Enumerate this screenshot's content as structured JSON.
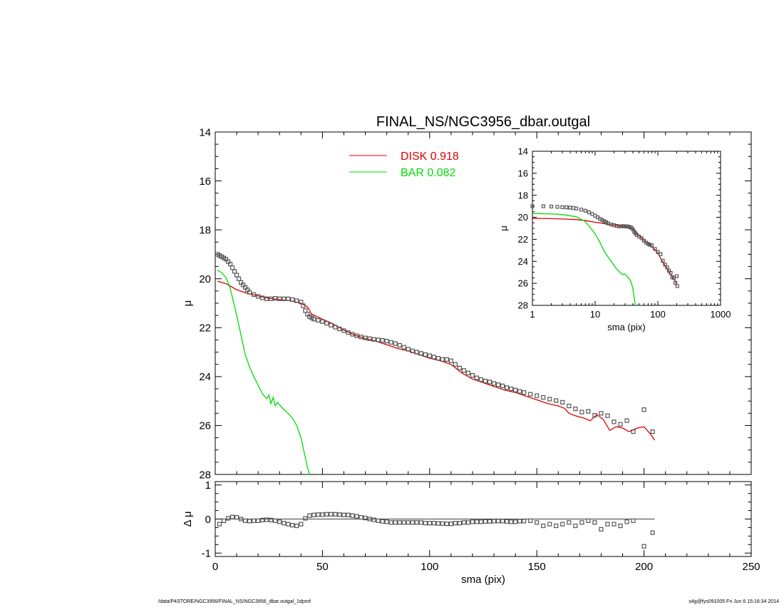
{
  "chart_data": [
    {
      "id": "main",
      "type": "line",
      "title": "FINAL_NS/NGC3956_dbar.outgal",
      "xlabel": "",
      "ylabel": "μ",
      "xlim": [
        0,
        250
      ],
      "ylim": [
        28,
        14
      ],
      "y_inverted": true,
      "xticks": [],
      "yticks": [
        14,
        16,
        18,
        20,
        22,
        24,
        26,
        28
      ],
      "legend": [
        {
          "label": "DISK",
          "value": "0.918",
          "color": "#dd0000"
        },
        {
          "label": "BAR",
          "value": "0.082",
          "color": "#00dd00"
        }
      ],
      "legend_position": "top-center",
      "series": [
        {
          "name": "DISK",
          "kind": "line",
          "color": "#dd0000",
          "x": [
            1,
            3,
            5,
            7,
            10,
            15,
            20,
            25,
            30,
            35,
            40,
            43,
            45,
            50,
            55,
            60,
            65,
            70,
            75,
            80,
            85,
            90,
            95,
            100,
            105,
            110,
            115,
            120,
            125,
            130,
            135,
            140,
            145,
            150,
            155,
            160,
            163,
            165,
            168,
            172,
            175,
            178,
            181,
            184,
            187,
            190,
            193,
            197,
            200,
            203,
            205
          ],
          "y": [
            20.1,
            20.15,
            20.2,
            20.3,
            20.45,
            20.6,
            20.7,
            20.8,
            20.85,
            20.9,
            21.0,
            21.15,
            21.45,
            21.65,
            21.85,
            22.1,
            22.3,
            22.45,
            22.55,
            22.7,
            22.85,
            22.95,
            23.1,
            23.25,
            23.35,
            23.5,
            23.85,
            24.1,
            24.25,
            24.4,
            24.55,
            24.65,
            24.8,
            24.95,
            25.1,
            25.2,
            25.3,
            25.5,
            25.6,
            25.7,
            25.8,
            25.55,
            25.75,
            26.2,
            26.05,
            26.1,
            26.25,
            26.1,
            26.05,
            26.35,
            26.6
          ]
        },
        {
          "name": "BAR",
          "kind": "line",
          "color": "#00dd00",
          "x": [
            1,
            3,
            5,
            7,
            10,
            12,
            14,
            16,
            18,
            20,
            22,
            24,
            25,
            26,
            27,
            28,
            29,
            30,
            32,
            34,
            36,
            38,
            40,
            41,
            42,
            43,
            44
          ],
          "y": [
            19.65,
            19.75,
            19.95,
            20.4,
            21.5,
            22.3,
            23.1,
            23.6,
            24.0,
            24.35,
            24.7,
            24.9,
            24.75,
            25.1,
            24.85,
            25.2,
            25.05,
            25.15,
            25.35,
            25.5,
            25.7,
            26.0,
            26.5,
            26.9,
            27.3,
            27.7,
            28.1
          ]
        },
        {
          "name": "",
          "kind": "points",
          "color": "#555555",
          "x": [
            1,
            2,
            3,
            4,
            5,
            6,
            7,
            8,
            9,
            10,
            11,
            12,
            13,
            14,
            15,
            16,
            18,
            20,
            22,
            24,
            26,
            28,
            30,
            32,
            34,
            36,
            38,
            40,
            41,
            42,
            43,
            44,
            45,
            46,
            48,
            50,
            52,
            54,
            56,
            58,
            60,
            62,
            64,
            66,
            68,
            70,
            72,
            74,
            76,
            78,
            80,
            82,
            84,
            86,
            88,
            90,
            92,
            94,
            96,
            98,
            100,
            102,
            104,
            106,
            108,
            110,
            112,
            114,
            116,
            118,
            120,
            122,
            124,
            126,
            128,
            130,
            132,
            134,
            136,
            138,
            140,
            142,
            144,
            147,
            150,
            153,
            156,
            159,
            162,
            165,
            168,
            171,
            174,
            177,
            180,
            183,
            186,
            189,
            192,
            195,
            200,
            204
          ],
          "y": [
            19.0,
            19.05,
            19.1,
            19.15,
            19.2,
            19.3,
            19.4,
            19.55,
            19.7,
            19.85,
            20.0,
            20.15,
            20.25,
            20.35,
            20.45,
            20.55,
            20.65,
            20.72,
            20.78,
            20.82,
            20.82,
            20.8,
            20.82,
            20.82,
            20.82,
            20.85,
            20.9,
            20.95,
            21.1,
            21.3,
            21.45,
            21.55,
            21.6,
            21.65,
            21.7,
            21.75,
            21.82,
            21.9,
            21.98,
            22.05,
            22.12,
            22.2,
            22.27,
            22.33,
            22.38,
            22.42,
            22.45,
            22.48,
            22.5,
            22.52,
            22.55,
            22.6,
            22.65,
            22.72,
            22.8,
            22.88,
            22.95,
            23.0,
            23.05,
            23.1,
            23.15,
            23.2,
            23.25,
            23.3,
            23.3,
            23.35,
            23.5,
            23.65,
            23.75,
            23.85,
            23.95,
            24.05,
            24.12,
            24.18,
            24.22,
            24.28,
            24.33,
            24.38,
            24.45,
            24.5,
            24.55,
            24.6,
            24.65,
            24.72,
            24.78,
            24.85,
            24.92,
            24.98,
            25.05,
            25.2,
            25.32,
            25.45,
            25.42,
            25.58,
            25.5,
            25.6,
            25.85,
            25.95,
            25.8,
            26.25,
            25.35,
            26.25
          ]
        }
      ]
    },
    {
      "id": "residual",
      "type": "scatter",
      "title": "",
      "xlabel": "sma (pix)",
      "ylabel": "Δ μ",
      "xlim": [
        0,
        250
      ],
      "ylim": [
        -1.1,
        1.1
      ],
      "xticks": [
        0,
        50,
        100,
        150,
        200,
        250
      ],
      "yticks": [
        -1,
        0,
        1
      ],
      "zero_line": true,
      "series": [
        {
          "name": "",
          "kind": "points",
          "color": "#555555",
          "x": [
            2,
            4,
            6,
            8,
            10,
            12,
            14,
            16,
            18,
            20,
            22,
            24,
            26,
            28,
            30,
            32,
            34,
            36,
            38,
            40,
            42,
            44,
            46,
            48,
            50,
            52,
            54,
            56,
            58,
            60,
            62,
            64,
            66,
            68,
            70,
            72,
            74,
            76,
            78,
            80,
            82,
            84,
            86,
            88,
            90,
            92,
            94,
            96,
            98,
            100,
            102,
            104,
            106,
            108,
            110,
            112,
            114,
            116,
            118,
            120,
            122,
            124,
            126,
            128,
            130,
            132,
            134,
            136,
            138,
            140,
            142,
            144,
            147,
            150,
            153,
            156,
            159,
            162,
            165,
            168,
            171,
            174,
            177,
            180,
            183,
            186,
            189,
            192,
            195,
            200,
            204
          ],
          "y": [
            -0.15,
            -0.05,
            0.02,
            0.06,
            0.05,
            0.0,
            -0.05,
            -0.06,
            -0.05,
            -0.05,
            -0.03,
            -0.02,
            -0.03,
            -0.05,
            -0.08,
            -0.12,
            -0.15,
            -0.18,
            -0.2,
            -0.15,
            0.02,
            0.1,
            0.12,
            0.13,
            0.13,
            0.14,
            0.14,
            0.14,
            0.13,
            0.12,
            0.12,
            0.1,
            0.08,
            0.05,
            0.03,
            0.0,
            -0.02,
            -0.05,
            -0.07,
            -0.08,
            -0.1,
            -0.1,
            -0.1,
            -0.1,
            -0.1,
            -0.1,
            -0.1,
            -0.1,
            -0.12,
            -0.12,
            -0.12,
            -0.13,
            -0.13,
            -0.14,
            -0.14,
            -0.12,
            -0.12,
            -0.1,
            -0.1,
            -0.08,
            -0.08,
            -0.08,
            -0.07,
            -0.07,
            -0.06,
            -0.06,
            -0.06,
            -0.07,
            -0.08,
            -0.08,
            -0.06,
            -0.06,
            -0.05,
            -0.1,
            -0.2,
            -0.15,
            -0.2,
            -0.15,
            -0.1,
            -0.2,
            -0.1,
            -0.05,
            -0.1,
            -0.3,
            -0.15,
            -0.15,
            -0.2,
            -0.08,
            -0.05,
            -0.8,
            -0.4
          ]
        }
      ]
    },
    {
      "id": "inset",
      "type": "line",
      "title": "",
      "xlabel": "sma (pix)",
      "ylabel": "μ",
      "xscale": "log",
      "xlim": [
        1,
        1000
      ],
      "ylim": [
        28,
        14
      ],
      "y_inverted": true,
      "xticks": [
        1,
        10,
        100,
        1000
      ],
      "yticks": [
        14,
        16,
        18,
        20,
        22,
        24,
        26,
        28
      ],
      "series": [
        {
          "name": "DISK",
          "kind": "line",
          "color": "#dd0000",
          "x": [
            1,
            2,
            3,
            5,
            7,
            10,
            15,
            20,
            25,
            30,
            35,
            40,
            45,
            50,
            60,
            70,
            80,
            90,
            100,
            120,
            140,
            160,
            180,
            200
          ],
          "y": [
            20.1,
            20.12,
            20.15,
            20.2,
            20.3,
            20.45,
            20.6,
            20.7,
            20.8,
            20.85,
            20.9,
            21.0,
            21.45,
            21.65,
            22.1,
            22.45,
            22.7,
            22.95,
            23.25,
            24.1,
            24.65,
            25.2,
            25.6,
            26.05
          ]
        },
        {
          "name": "BAR",
          "kind": "line",
          "color": "#00dd00",
          "x": [
            1,
            2,
            3,
            5,
            7,
            10,
            12,
            14,
            16,
            18,
            20,
            22,
            24,
            26,
            28,
            30,
            32,
            34,
            36,
            38,
            40,
            42,
            44
          ],
          "y": [
            19.65,
            19.7,
            19.75,
            19.95,
            20.4,
            21.5,
            22.3,
            23.1,
            23.6,
            24.0,
            24.35,
            24.7,
            24.9,
            25.1,
            25.2,
            25.15,
            25.35,
            25.5,
            25.7,
            26.0,
            26.5,
            27.3,
            28.1
          ]
        },
        {
          "name": "",
          "kind": "points",
          "color": "#555555",
          "x": [
            1,
            1.5,
            2,
            2.5,
            3,
            3.5,
            4,
            4.5,
            5,
            6,
            7,
            8,
            9,
            10,
            11,
            12,
            13,
            14,
            15,
            16,
            18,
            20,
            22,
            24,
            26,
            28,
            30,
            32,
            34,
            36,
            38,
            40,
            42,
            44,
            46,
            50,
            55,
            60,
            65,
            70,
            75,
            80,
            90,
            100,
            110,
            120,
            130,
            140,
            150,
            160,
            170,
            180,
            190,
            200,
            204
          ],
          "y": [
            19.0,
            19.0,
            19.02,
            19.05,
            19.08,
            19.1,
            19.12,
            19.15,
            19.2,
            19.3,
            19.4,
            19.55,
            19.7,
            19.85,
            20.0,
            20.15,
            20.25,
            20.35,
            20.45,
            20.55,
            20.65,
            20.72,
            20.78,
            20.82,
            20.82,
            20.8,
            20.82,
            20.82,
            20.85,
            20.9,
            20.95,
            21.1,
            21.3,
            21.45,
            21.6,
            21.75,
            21.9,
            22.12,
            22.3,
            22.42,
            22.5,
            22.55,
            22.88,
            23.15,
            23.35,
            23.95,
            24.3,
            24.55,
            24.85,
            25.05,
            25.45,
            25.5,
            25.95,
            25.35,
            26.25
          ]
        }
      ]
    }
  ],
  "footer": {
    "left": "/data/P4STORE/NGC3956/FINAL_NS/NGC3956_dbar.outgal_1dprof",
    "right": "s4g@fys091005  Fri Jun  6 15:16:34 2014"
  }
}
